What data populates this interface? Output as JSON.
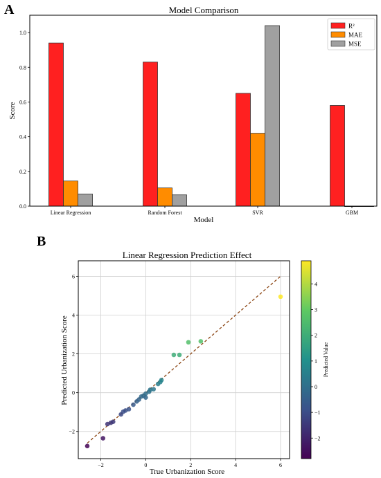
{
  "panels": {
    "a": "A",
    "b": "B"
  },
  "chart_data": [
    {
      "type": "bar",
      "title": "Model Comparison",
      "xlabel": "Model",
      "ylabel": "Score",
      "categories": [
        "Linear Regression",
        "Random Forest",
        "SVR",
        "GBM"
      ],
      "series": [
        {
          "name": "R²",
          "values": [
            0.94,
            0.83,
            0.65,
            0.58
          ],
          "color": "#ff2020"
        },
        {
          "name": "MAE",
          "values": [
            0.145,
            0.105,
            0.42,
            0.0
          ],
          "color": "#ff8c00"
        },
        {
          "name": "MSE",
          "values": [
            0.07,
            0.065,
            1.04,
            0.0
          ],
          "color": "#a0a0a0"
        }
      ],
      "ylim": [
        0,
        1.1
      ],
      "yticks": [
        "0.0",
        "0.2",
        "0.4",
        "0.6",
        "0.8",
        "1.0"
      ],
      "legend": "top-right",
      "grid": false
    },
    {
      "type": "scatter",
      "title": "Linear Regression Prediction Effect",
      "xlabel": "True Urbanization Score",
      "ylabel": "Predicted Urbanization Score",
      "colorbar_label": "Predicted Value",
      "xlim": [
        -3,
        6.4
      ],
      "ylim": [
        -3.4,
        6.8
      ],
      "xticks": [
        "−2",
        "0",
        "2",
        "4",
        "6"
      ],
      "yticks": [
        "−2",
        "0",
        "2",
        "4",
        "6"
      ],
      "colorbar_ticks": [
        "−2",
        "−1",
        "0",
        "1",
        "2",
        "3",
        "4"
      ],
      "colorbar_range": [
        -2.8,
        4.9
      ],
      "grid": true,
      "colormap": "viridis",
      "reference_line": {
        "from": [
          -2.6,
          -2.6
        ],
        "to": [
          6.0,
          6.0
        ],
        "color": "#8b4513",
        "style": "dashed"
      },
      "points": [
        {
          "x": -2.6,
          "y": -2.75
        },
        {
          "x": -1.9,
          "y": -2.35
        },
        {
          "x": -1.7,
          "y": -1.62
        },
        {
          "x": -1.55,
          "y": -1.55
        },
        {
          "x": -1.45,
          "y": -1.5
        },
        {
          "x": -1.1,
          "y": -1.12
        },
        {
          "x": -1.0,
          "y": -0.98
        },
        {
          "x": -0.9,
          "y": -0.92
        },
        {
          "x": -0.75,
          "y": -0.85
        },
        {
          "x": -0.55,
          "y": -0.62
        },
        {
          "x": -0.4,
          "y": -0.45
        },
        {
          "x": -0.3,
          "y": -0.35
        },
        {
          "x": -0.2,
          "y": -0.2
        },
        {
          "x": -0.1,
          "y": -0.15
        },
        {
          "x": 0.0,
          "y": -0.05
        },
        {
          "x": 0.0,
          "y": -0.25
        },
        {
          "x": 0.15,
          "y": 0.05
        },
        {
          "x": 0.2,
          "y": 0.15
        },
        {
          "x": 0.35,
          "y": 0.18
        },
        {
          "x": 0.55,
          "y": 0.45
        },
        {
          "x": 0.65,
          "y": 0.55
        },
        {
          "x": 0.7,
          "y": 0.65
        },
        {
          "x": 1.25,
          "y": 1.95
        },
        {
          "x": 1.5,
          "y": 1.95
        },
        {
          "x": 1.9,
          "y": 2.6
        },
        {
          "x": 2.45,
          "y": 2.65
        },
        {
          "x": 6.0,
          "y": 4.95
        }
      ]
    }
  ]
}
